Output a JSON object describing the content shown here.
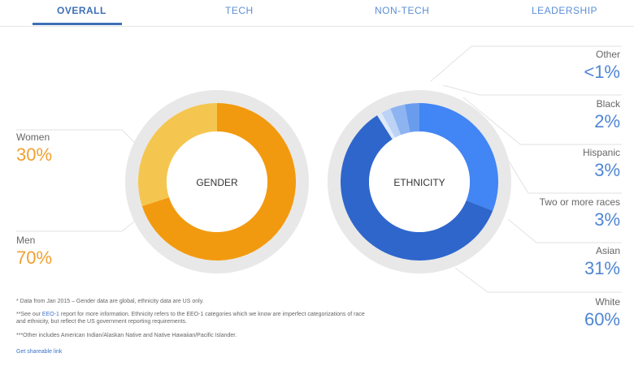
{
  "tabs": [
    {
      "label": "OVERALL",
      "active": true
    },
    {
      "label": "TECH",
      "active": false
    },
    {
      "label": "NON-TECH",
      "active": false
    },
    {
      "label": "LEADERSHIP",
      "active": false
    }
  ],
  "chart_data": [
    {
      "type": "pie",
      "title": "GENDER",
      "categories": [
        "Women",
        "Men"
      ],
      "values": [
        30,
        70
      ],
      "labels": [
        "30%",
        "70%"
      ],
      "colors": [
        "#f5c64f",
        "#f29a0f"
      ]
    },
    {
      "type": "pie",
      "title": "ETHNICITY",
      "categories": [
        "Other",
        "Black",
        "Hispanic",
        "Two or more races",
        "Asian",
        "White"
      ],
      "values": [
        1,
        2,
        3,
        3,
        31,
        60
      ],
      "labels": [
        "<1%",
        "2%",
        "3%",
        "3%",
        "31%",
        "60%"
      ],
      "colors": [
        "#dfe9f9",
        "#bcd3f6",
        "#8db4f0",
        "#6a9cee",
        "#4285f4",
        "#2f66cc"
      ]
    }
  ],
  "footnotes": {
    "note1": "* Data from Jan 2015 – Gender data are global, ethnicity data are US only.",
    "note2_pre": "**See our ",
    "note2_link": "EEO-1",
    "note2_post": " report for more information. Ethnicity refers to the EEO-1 categories which we know are imperfect categorizations of race and ethnicity, but reflect the US government reporting requirements.",
    "note3": "***Other includes American Indian/Alaskan Native and Native Hawaiian/Pacific Islander.",
    "share_link": "Get shareable link"
  }
}
